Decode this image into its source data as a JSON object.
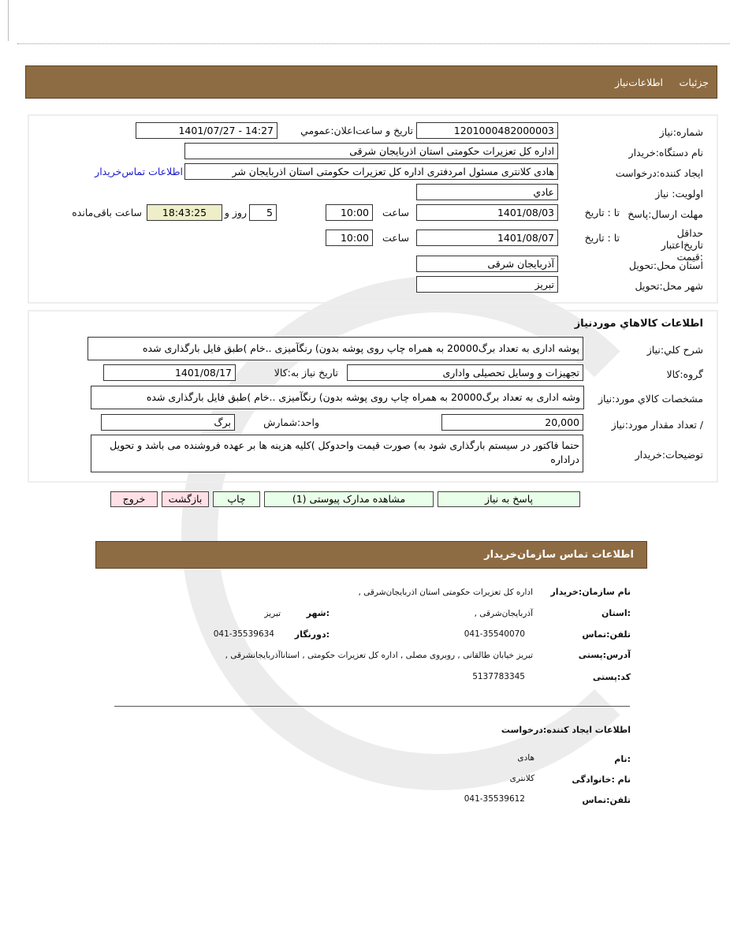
{
  "header": {
    "breadcrumb_details": "جزئیات",
    "breadcrumb_info": "اطلاعات‌نیاز"
  },
  "need": {
    "number_label": "شماره:نیاز",
    "number": "1201000482000003",
    "announce_label": "تاریخ و ساعت‌اعلان:عمومي",
    "announce": "1401/07/27 - 14:27",
    "buyer_label": "نام دستگاه:خریدار",
    "buyer": "اداره کل تعزیرات حکومتی استان اذربایجان شرقی",
    "creator_label": "ایجاد کننده:درخواست",
    "creator": "هادی کلانتری مسئول امردفتری اداره کل تعزیرات حکومتی استان اذربایجان شر",
    "contact_link": "اطلاعات تماس‌خریدار",
    "priority_label": "اولویت: نیاز",
    "priority": "عادي",
    "deadline_label": "مهلت ارسال:پاسخ",
    "to_date_label": "تا : تاریخ",
    "deadline_date": "1401/08/03",
    "time_label": "ساعت",
    "deadline_time": "10:00",
    "days": "5",
    "days_label": "روز و",
    "remaining": "18:43:25",
    "remaining_label": "ساعت باقی‌مانده",
    "validity_label": "حداقل تاریخ‌اعتبار :قیمت",
    "validity_date": "1401/08/07",
    "validity_time": "10:00",
    "province_label": "استان محل:تحویل",
    "province": "آذربایجان شرقی",
    "city_label": "شهر محل:تحویل",
    "city": "تبریز"
  },
  "goods": {
    "title": "اطلاعات کالاهاي موردنياز",
    "desc_label": "شرح کلي:نیاز",
    "desc": "پوشه اداری به تعداد برگ20000 به همراه چاپ روی پوشه بدون) رنگآمیزی ..خام )طبق فایل بارگذاری شده",
    "group_label": "گروه:کالا",
    "group": "تجهیزات و وسایل تحصیلی واداری",
    "need_date_label": "تاریخ نیاز به:کالا",
    "need_date": "1401/08/17",
    "spec_label": "مشخصات کالاي مورد:نیاز",
    "spec": "وشه اداری به تعداد برگ20000 به همراه چاپ روی پوشه بدون) رنگآمیزی ..خام )طبق فایل بارگذاری شده",
    "qty_label": "/ تعداد مقدار مورد:نیاز",
    "qty": "20,000",
    "unit_label": "واحد:شمارش",
    "unit": "برگ",
    "notes_label": "توضیحات:خریدار",
    "notes": "حتما فاکتور در سیستم بارگذاری شود به) صورت قیمت واحدوکل )کلیه هزینه ها بر عهده فروشنده می باشد و تحویل درادارە"
  },
  "buttons": {
    "respond": "پاسخ به نیاز",
    "attachments": "مشاهده مدارک پیوستی (1)",
    "print": "چاپ",
    "back": "بازگشت",
    "exit": "خروج"
  },
  "contact": {
    "title": "اطلاعات  تماس سازمان‌خریدار",
    "org_label": "نام سازمان:خریدار",
    "org": "اداره کل تعزیرات حکومتی استان اذربایجان‌شرقی ,",
    "province_label": ":استان",
    "province": "آذربایجان‌شرقی ,",
    "city_label": ":شهر",
    "city": "تبریز",
    "phone_label": "تلفن:تماس",
    "phone": "041-35540070",
    "fax_label": ":دورنگار",
    "fax": "041-35539634",
    "address_label": "آدرس:پستی",
    "address": "تبریز خیابان طالقانی , روبروی مصلی , اداره کل تعزیرات حکومتی , استاناآذربایجانشرقی ,",
    "postal_label": "کد:پستی",
    "postal": "5137783345"
  },
  "requester": {
    "title": "اطلاعات ایجاد کننده:درخواست",
    "name_label": ":نام",
    "name": "هادی",
    "family_label": "نام :خانوادگی",
    "family": "کلانتری",
    "phone_label": "تلفن:تماس",
    "phone": "041-35539612"
  }
}
